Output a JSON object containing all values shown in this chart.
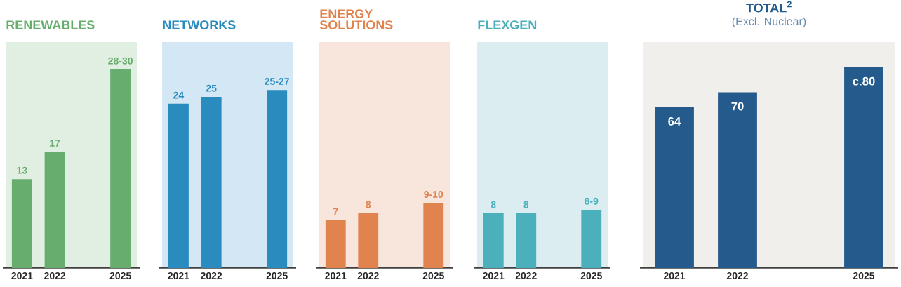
{
  "chart_data": [
    {
      "type": "bar",
      "title": "RENEWABLES",
      "categories": [
        "2021",
        "2022",
        null,
        "2025"
      ],
      "values": [
        13,
        17,
        null,
        29
      ],
      "value_labels": [
        "13",
        "17",
        null,
        "28-30"
      ],
      "color": "#66ad6e",
      "ylim": [
        0,
        33
      ]
    },
    {
      "type": "bar",
      "title": "NETWORKS",
      "categories": [
        "2021",
        "2022",
        null,
        "2025"
      ],
      "values": [
        24,
        25,
        null,
        26
      ],
      "value_labels": [
        "24",
        "25",
        null,
        "25-27"
      ],
      "color": "#2a8bbf",
      "ylim": [
        0,
        33
      ]
    },
    {
      "type": "bar",
      "title": "ENERGY SOLUTIONS",
      "categories": [
        "2021",
        "2022",
        null,
        "2025"
      ],
      "values": [
        7,
        8,
        null,
        9.5
      ],
      "value_labels": [
        "7",
        "8",
        null,
        "9-10"
      ],
      "color": "#e0834f",
      "ylim": [
        0,
        33
      ]
    },
    {
      "type": "bar",
      "title": "FLEXGEN",
      "categories": [
        "2021",
        "2022",
        null,
        "2025"
      ],
      "values": [
        8,
        8,
        null,
        8.5
      ],
      "value_labels": [
        "8",
        "8",
        null,
        "8-9"
      ],
      "color": "#4bb0bb",
      "ylim": [
        0,
        33
      ]
    },
    {
      "type": "bar",
      "title": "TOTAL$^{2}$",
      "subtitle": "(Excl. Nuclear)",
      "categories": [
        "2021",
        "2022",
        null,
        "2025"
      ],
      "values": [
        64,
        70,
        null,
        80
      ],
      "value_labels": [
        "64",
        "70",
        null,
        "c.80"
      ],
      "color": "#245a8c",
      "ylim": [
        0,
        90
      ]
    }
  ]
}
